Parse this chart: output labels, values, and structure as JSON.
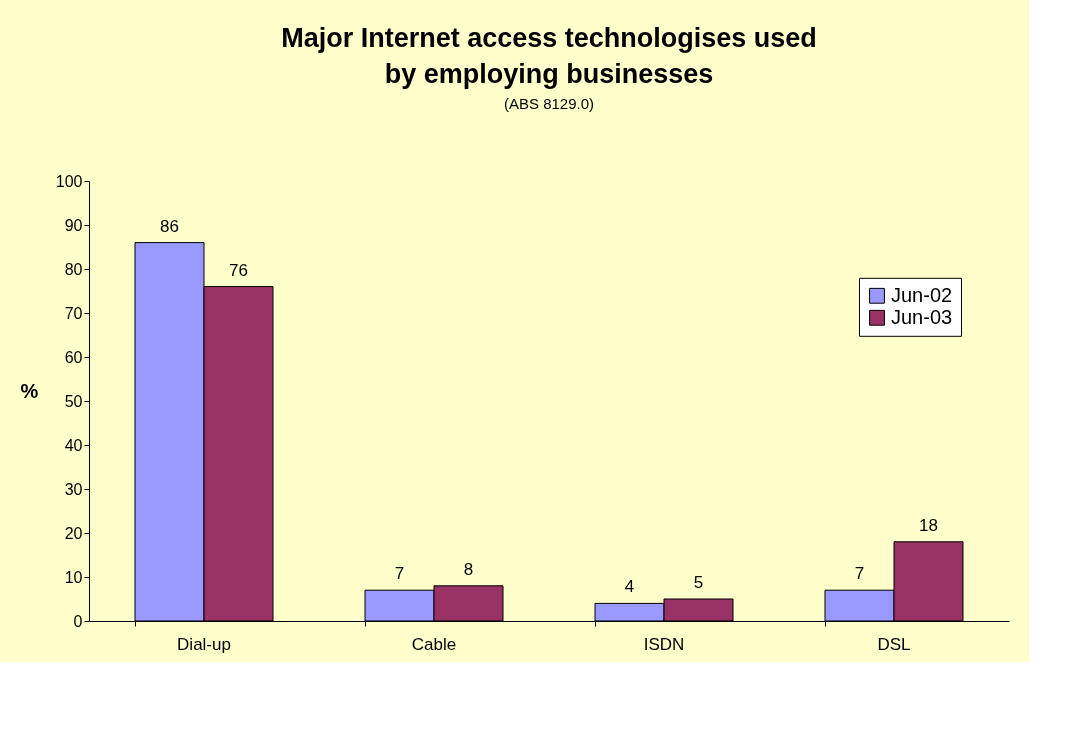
{
  "chart_data": {
    "type": "bar",
    "title": "Major Internet access technologises used by employing businesses",
    "subtitle": "(ABS 8129.0)",
    "ylabel": "%",
    "categories": [
      "Dial-up",
      "Cable",
      "ISDN",
      "DSL"
    ],
    "series": [
      {
        "name": "Jun-02",
        "color": "#9999ff",
        "values": [
          86,
          7,
          4,
          7
        ]
      },
      {
        "name": "Jun-03",
        "color": "#993366",
        "values": [
          76,
          8,
          5,
          18
        ]
      }
    ],
    "ylim": [
      0,
      100
    ],
    "yticks": [
      0,
      10,
      20,
      30,
      40,
      50,
      60,
      70,
      80,
      90,
      100
    ],
    "grid": false,
    "legend": "right",
    "data_labels": true
  }
}
